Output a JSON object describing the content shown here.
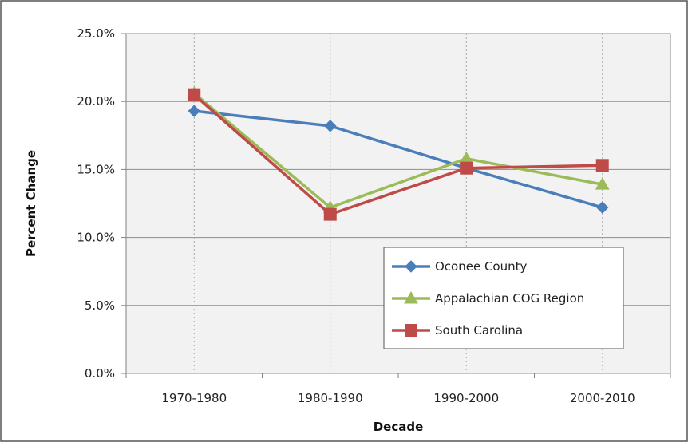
{
  "chart_data": {
    "type": "line",
    "title": "",
    "xlabel": "Decade",
    "ylabel": "Percent Change",
    "categories": [
      "1970-1980",
      "1980-1990",
      "1990-2000",
      "2000-2010"
    ],
    "ylim": [
      0,
      25
    ],
    "yticks": [
      0,
      5,
      10,
      15,
      20,
      25
    ],
    "ytick_labels": [
      "0.0%",
      "5.0%",
      "10.0%",
      "15.0%",
      "20.0%",
      "25.0%"
    ],
    "grid": "on",
    "legend_position": "lower-right",
    "series": [
      {
        "name": "Oconee County",
        "values": [
          19.3,
          18.2,
          15.1,
          12.2
        ],
        "color": "#4a7ebb",
        "marker": "diamond"
      },
      {
        "name": "Appalachian COG Region",
        "values": [
          20.6,
          12.2,
          15.8,
          13.9
        ],
        "color": "#9bbb59",
        "marker": "triangle"
      },
      {
        "name": "South Carolina",
        "values": [
          20.5,
          11.7,
          15.1,
          15.3
        ],
        "color": "#be4b48",
        "marker": "square"
      }
    ]
  }
}
